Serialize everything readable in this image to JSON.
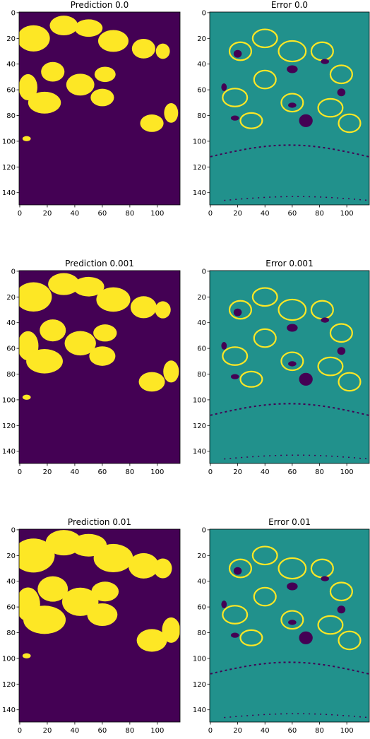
{
  "colors": {
    "low": "#440154",
    "mid": "#21918c",
    "high": "#fde725",
    "axis": "#000000"
  },
  "chart_data": [
    {
      "type": "heatmap",
      "title": "Prediction 0.0",
      "xticks": [
        0,
        20,
        40,
        60,
        80,
        100
      ],
      "yticks": [
        0,
        20,
        40,
        60,
        80,
        100,
        120,
        140
      ],
      "xlim": [
        -0.5,
        116.5
      ],
      "ylim": [
        149.5,
        -0.5
      ],
      "colormap": "viridis",
      "cells": "binary mask; yellow = predicted region"
    },
    {
      "type": "heatmap",
      "title": "Error 0.0",
      "xticks": [
        0,
        20,
        40,
        60,
        80,
        100
      ],
      "yticks": [
        0,
        20,
        40,
        60,
        80,
        100,
        120,
        140
      ],
      "xlim": [
        -0.5,
        116.5
      ],
      "ylim": [
        149.5,
        -0.5
      ],
      "colormap": "viridis",
      "cells": "ternary map; teal = 0, yellow = +1, purple = -1"
    },
    {
      "type": "heatmap",
      "title": "Prediction 0.001",
      "xticks": [
        0,
        20,
        40,
        60,
        80,
        100
      ],
      "yticks": [
        0,
        20,
        40,
        60,
        80,
        100,
        120,
        140
      ],
      "xlim": [
        -0.5,
        116.5
      ],
      "ylim": [
        149.5,
        -0.5
      ],
      "colormap": "viridis",
      "cells": "binary mask; yellow = predicted region"
    },
    {
      "type": "heatmap",
      "title": "Error 0.001",
      "xticks": [
        0,
        20,
        40,
        60,
        80,
        100
      ],
      "yticks": [
        0,
        20,
        40,
        60,
        80,
        100,
        120,
        140
      ],
      "xlim": [
        -0.5,
        116.5
      ],
      "ylim": [
        149.5,
        -0.5
      ],
      "colormap": "viridis",
      "cells": "ternary map; teal = 0, yellow = +1, purple = -1"
    },
    {
      "type": "heatmap",
      "title": "Prediction 0.01",
      "xticks": [
        0,
        20,
        40,
        60,
        80,
        100
      ],
      "yticks": [
        0,
        20,
        40,
        60,
        80,
        100,
        120,
        140
      ],
      "xlim": [
        -0.5,
        116.5
      ],
      "ylim": [
        149.5,
        -0.5
      ],
      "colormap": "viridis",
      "cells": "binary mask; yellow = predicted region"
    },
    {
      "type": "heatmap",
      "title": "Error 0.01",
      "xticks": [
        0,
        20,
        40,
        60,
        80,
        100
      ],
      "yticks": [
        0,
        20,
        40,
        60,
        80,
        100,
        120,
        140
      ],
      "xlim": [
        -0.5,
        116.5
      ],
      "ylim": [
        149.5,
        -0.5
      ],
      "colormap": "viridis",
      "cells": "ternary map; teal = 0, yellow = +1, purple = -1"
    }
  ]
}
